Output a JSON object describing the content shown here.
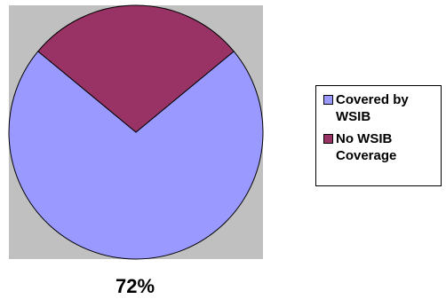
{
  "chart_data": {
    "type": "pie",
    "categories": [
      "Covered by WSIB",
      "No WSIB Coverage"
    ],
    "values": [
      72,
      28
    ],
    "unit": "%",
    "colors": [
      "#9999ff",
      "#993366"
    ],
    "plot_background": "#c0c0c0",
    "start_slice_centered_at": "bottom",
    "legend_position": "right",
    "data_labels": [
      "72%"
    ],
    "title": "",
    "xlabel": "",
    "ylabel": ""
  }
}
